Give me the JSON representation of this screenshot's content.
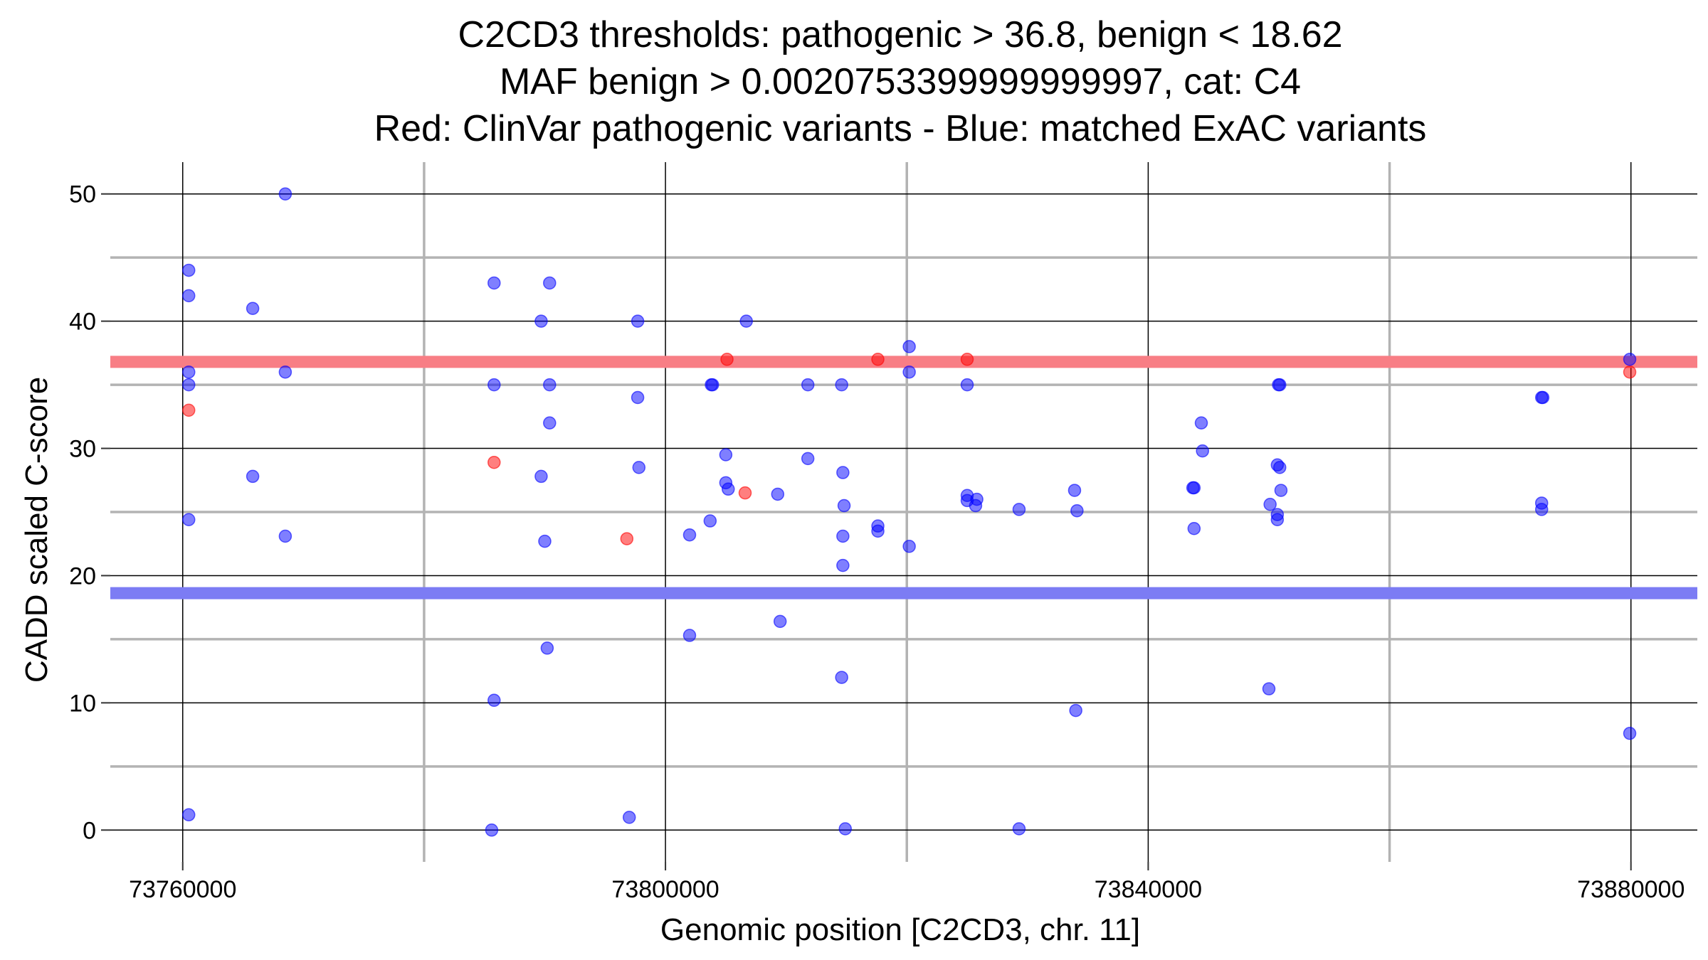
{
  "chart_data": {
    "type": "scatter",
    "title": [
      "C2CD3 thresholds: pathogenic > 36.8, benign < 18.62",
      "MAF benign > 0.0020753399999999997, cat: C4",
      "Red: ClinVar pathogenic variants - Blue: matched ExAC variants"
    ],
    "xlabel": "Genomic position [C2CD3, chr. 11]",
    "ylabel": "CADD scaled C-score",
    "xlim": [
      73754000,
      73885500
    ],
    "ylim": [
      -2.5,
      52.5
    ],
    "x_major_ticks": [
      73760000,
      73800000,
      73840000,
      73880000
    ],
    "x_minor_ticks": [
      73780000,
      73820000,
      73860000
    ],
    "y_major_ticks": [
      0,
      10,
      20,
      30,
      40,
      50
    ],
    "y_minor_ticks": [
      5,
      15,
      25,
      35,
      45
    ],
    "x_tick_labels": [
      "73760000",
      "73800000",
      "73840000",
      "73880000"
    ],
    "y_tick_labels": [
      "0",
      "10",
      "20",
      "30",
      "40",
      "50"
    ],
    "thresholds": [
      {
        "name": "pathogenic",
        "value": 36.8,
        "color": "#f87e85"
      },
      {
        "name": "benign",
        "value": 18.62,
        "color": "#7c7cf4"
      }
    ],
    "series": [
      {
        "name": "ClinVar pathogenic variants",
        "color": "#ff0000",
        "points": [
          [
            73760500,
            33
          ],
          [
            73785800,
            28.9
          ],
          [
            73796800,
            22.9
          ],
          [
            73805100,
            37
          ],
          [
            73806600,
            26.5
          ],
          [
            73817600,
            37
          ],
          [
            73825000,
            37
          ],
          [
            73879900,
            36
          ]
        ]
      },
      {
        "name": "matched ExAC variants",
        "color": "#0000ff",
        "points": [
          [
            73760500,
            44
          ],
          [
            73760500,
            42
          ],
          [
            73760500,
            36
          ],
          [
            73760500,
            35
          ],
          [
            73760500,
            24.4
          ],
          [
            73760500,
            1.2
          ],
          [
            73765800,
            41
          ],
          [
            73765800,
            27.8
          ],
          [
            73768500,
            50
          ],
          [
            73768500,
            36
          ],
          [
            73768500,
            23.1
          ],
          [
            73785800,
            43
          ],
          [
            73785800,
            35
          ],
          [
            73785800,
            10.2
          ],
          [
            73785600,
            0
          ],
          [
            73789700,
            40
          ],
          [
            73789700,
            27.8
          ],
          [
            73790000,
            22.7
          ],
          [
            73790400,
            43
          ],
          [
            73790400,
            35
          ],
          [
            73790400,
            32
          ],
          [
            73790200,
            14.3
          ],
          [
            73797000,
            1
          ],
          [
            73797700,
            40
          ],
          [
            73797700,
            34
          ],
          [
            73797800,
            28.5
          ],
          [
            73802000,
            23.2
          ],
          [
            73802000,
            15.3
          ],
          [
            73803700,
            24.3
          ],
          [
            73803800,
            35
          ],
          [
            73803900,
            35
          ],
          [
            73805000,
            29.5
          ],
          [
            73805000,
            27.3
          ],
          [
            73805200,
            26.8
          ],
          [
            73806700,
            40
          ],
          [
            73809300,
            26.4
          ],
          [
            73809500,
            16.4
          ],
          [
            73811800,
            35
          ],
          [
            73811800,
            29.2
          ],
          [
            73814600,
            35
          ],
          [
            73814700,
            28.1
          ],
          [
            73814800,
            25.5
          ],
          [
            73814700,
            23.1
          ],
          [
            73814700,
            20.8
          ],
          [
            73814600,
            12
          ],
          [
            73814900,
            0.1
          ],
          [
            73817600,
            23.9
          ],
          [
            73817600,
            23.5
          ],
          [
            73820200,
            38
          ],
          [
            73820200,
            36
          ],
          [
            73820200,
            22.3
          ],
          [
            73825000,
            35
          ],
          [
            73825000,
            26.3
          ],
          [
            73825000,
            25.9
          ],
          [
            73825800,
            26
          ],
          [
            73825700,
            25.5
          ],
          [
            73829300,
            25.2
          ],
          [
            73829300,
            0.1
          ],
          [
            73833900,
            26.7
          ],
          [
            73834100,
            25.1
          ],
          [
            73834000,
            9.4
          ],
          [
            73843700,
            26.9
          ],
          [
            73843800,
            26.9
          ],
          [
            73843800,
            23.7
          ],
          [
            73844400,
            32
          ],
          [
            73844500,
            29.8
          ],
          [
            73850100,
            25.6
          ],
          [
            73850000,
            11.1
          ],
          [
            73850800,
            35
          ],
          [
            73850900,
            35
          ],
          [
            73850700,
            28.7
          ],
          [
            73850900,
            28.5
          ],
          [
            73851000,
            26.7
          ],
          [
            73850700,
            24.8
          ],
          [
            73850700,
            24.4
          ],
          [
            73872600,
            34
          ],
          [
            73872700,
            34
          ],
          [
            73872600,
            25.7
          ],
          [
            73872600,
            25.2
          ],
          [
            73879900,
            37
          ],
          [
            73879900,
            7.6
          ]
        ]
      }
    ]
  }
}
